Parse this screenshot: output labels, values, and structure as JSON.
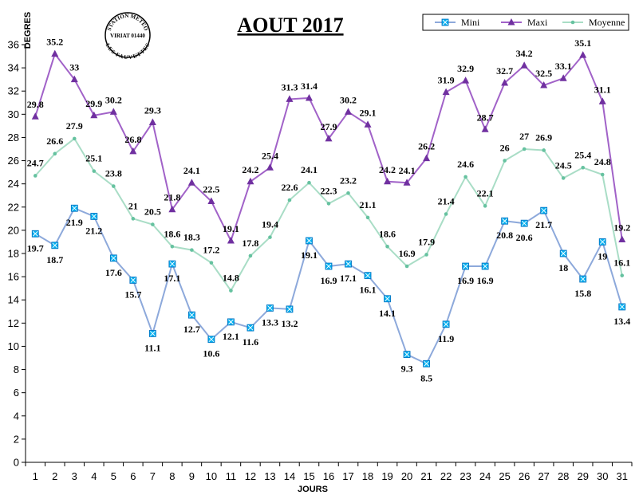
{
  "chart_data": {
    "type": "line",
    "title": "AOUT 2017",
    "xlabel": "JOURS",
    "ylabel": "DEGRES",
    "x": [
      1,
      2,
      3,
      4,
      5,
      6,
      7,
      8,
      9,
      10,
      11,
      12,
      13,
      14,
      15,
      16,
      17,
      18,
      19,
      20,
      21,
      22,
      23,
      24,
      25,
      26,
      27,
      28,
      29,
      30,
      31
    ],
    "ylim": [
      0,
      36
    ],
    "yticks": [
      0,
      2,
      4,
      6,
      8,
      10,
      12,
      14,
      16,
      18,
      20,
      22,
      24,
      26,
      28,
      30,
      32,
      34,
      36
    ],
    "grid": false,
    "legend_position": "top-right",
    "series": [
      {
        "name": "Mini",
        "color": "#8DA9DB",
        "marker_color": "#00B0F0",
        "marker": "square",
        "values": [
          19.7,
          18.7,
          21.9,
          21.2,
          17.6,
          15.7,
          11.1,
          17.1,
          12.7,
          10.6,
          12.1,
          11.6,
          13.3,
          13.2,
          19.1,
          16.9,
          17.1,
          16.1,
          14.1,
          9.3,
          8.5,
          11.9,
          16.9,
          16.9,
          20.8,
          20.6,
          21.7,
          18,
          15.8,
          19,
          13.4
        ]
      },
      {
        "name": "Maxi",
        "color": "#A162C8",
        "marker_color": "#7030A0",
        "marker": "triangle",
        "values": [
          29.8,
          35.2,
          33,
          29.9,
          30.2,
          26.8,
          29.3,
          21.8,
          24.1,
          22.5,
          19.1,
          24.2,
          25.4,
          31.3,
          31.4,
          27.9,
          30.2,
          29.1,
          24.2,
          24.1,
          26.2,
          31.9,
          32.9,
          28.7,
          32.7,
          34.2,
          32.5,
          33.1,
          35.1,
          31.1,
          19.2
        ]
      },
      {
        "name": "Moyenne",
        "color": "#A9DDC6",
        "marker_color": "#66C2A0",
        "marker": "dot",
        "values": [
          24.7,
          26.6,
          27.9,
          25.1,
          23.8,
          21,
          20.5,
          18.6,
          18.3,
          17.2,
          14.8,
          17.8,
          19.4,
          22.6,
          24.1,
          22.3,
          23.2,
          21.1,
          18.6,
          16.9,
          17.9,
          21.4,
          24.6,
          22.1,
          26,
          27,
          26.9,
          24.5,
          25.4,
          24.8,
          16.1
        ]
      }
    ],
    "data_labels": {
      "Mini": [
        "19.7",
        "18.7",
        "21.9",
        "21.2",
        "17.6",
        "15.7",
        "11.1",
        "17.1",
        "12.7",
        "10.6",
        "12.1",
        "11.6",
        "13.3",
        "13.2",
        "19.1",
        "16.9",
        "17.1",
        "16.1",
        "14.1",
        "9.3",
        "8.5",
        "11.9",
        "16.9",
        "16.9",
        "20.8",
        "20.6",
        "21.7",
        "18",
        "15.8",
        "19",
        "13.4"
      ],
      "Maxi": [
        "29.8",
        "35.2",
        "33",
        "29.9",
        "30.2",
        "26.8",
        "29.3",
        "21.8",
        "24.1",
        "22.5",
        "19.1",
        "24.2",
        "25.4",
        "31.3",
        "31.4",
        "27.9",
        "30.2",
        "29.1",
        "24.2",
        "24.1",
        "26.2",
        "31.9",
        "32.9",
        "28.7",
        "32.7",
        "34.2",
        "32.5",
        "33.1",
        "35.1",
        "31.1",
        "19.2"
      ],
      "Moyenne": [
        "24.7",
        "26.6",
        "27.9",
        "25.1",
        "23.8",
        "21",
        "20.5",
        "18.6",
        "18.3",
        "17.2",
        "14.8",
        "17.8",
        "19.4",
        "22.6",
        "24.1",
        "22.3",
        "23.2",
        "21.1",
        "18.6",
        "16.9",
        "17.9",
        "21.4",
        "24.6",
        "22.1",
        "26",
        "27",
        "26.9",
        "24.5",
        "25.4",
        "24.8",
        "16.1"
      ]
    }
  },
  "stamp": {
    "top_text": "STATION METEO",
    "middle_text": "VIRIAT 01440",
    "bottom_text": "LES FAUVETTES"
  }
}
